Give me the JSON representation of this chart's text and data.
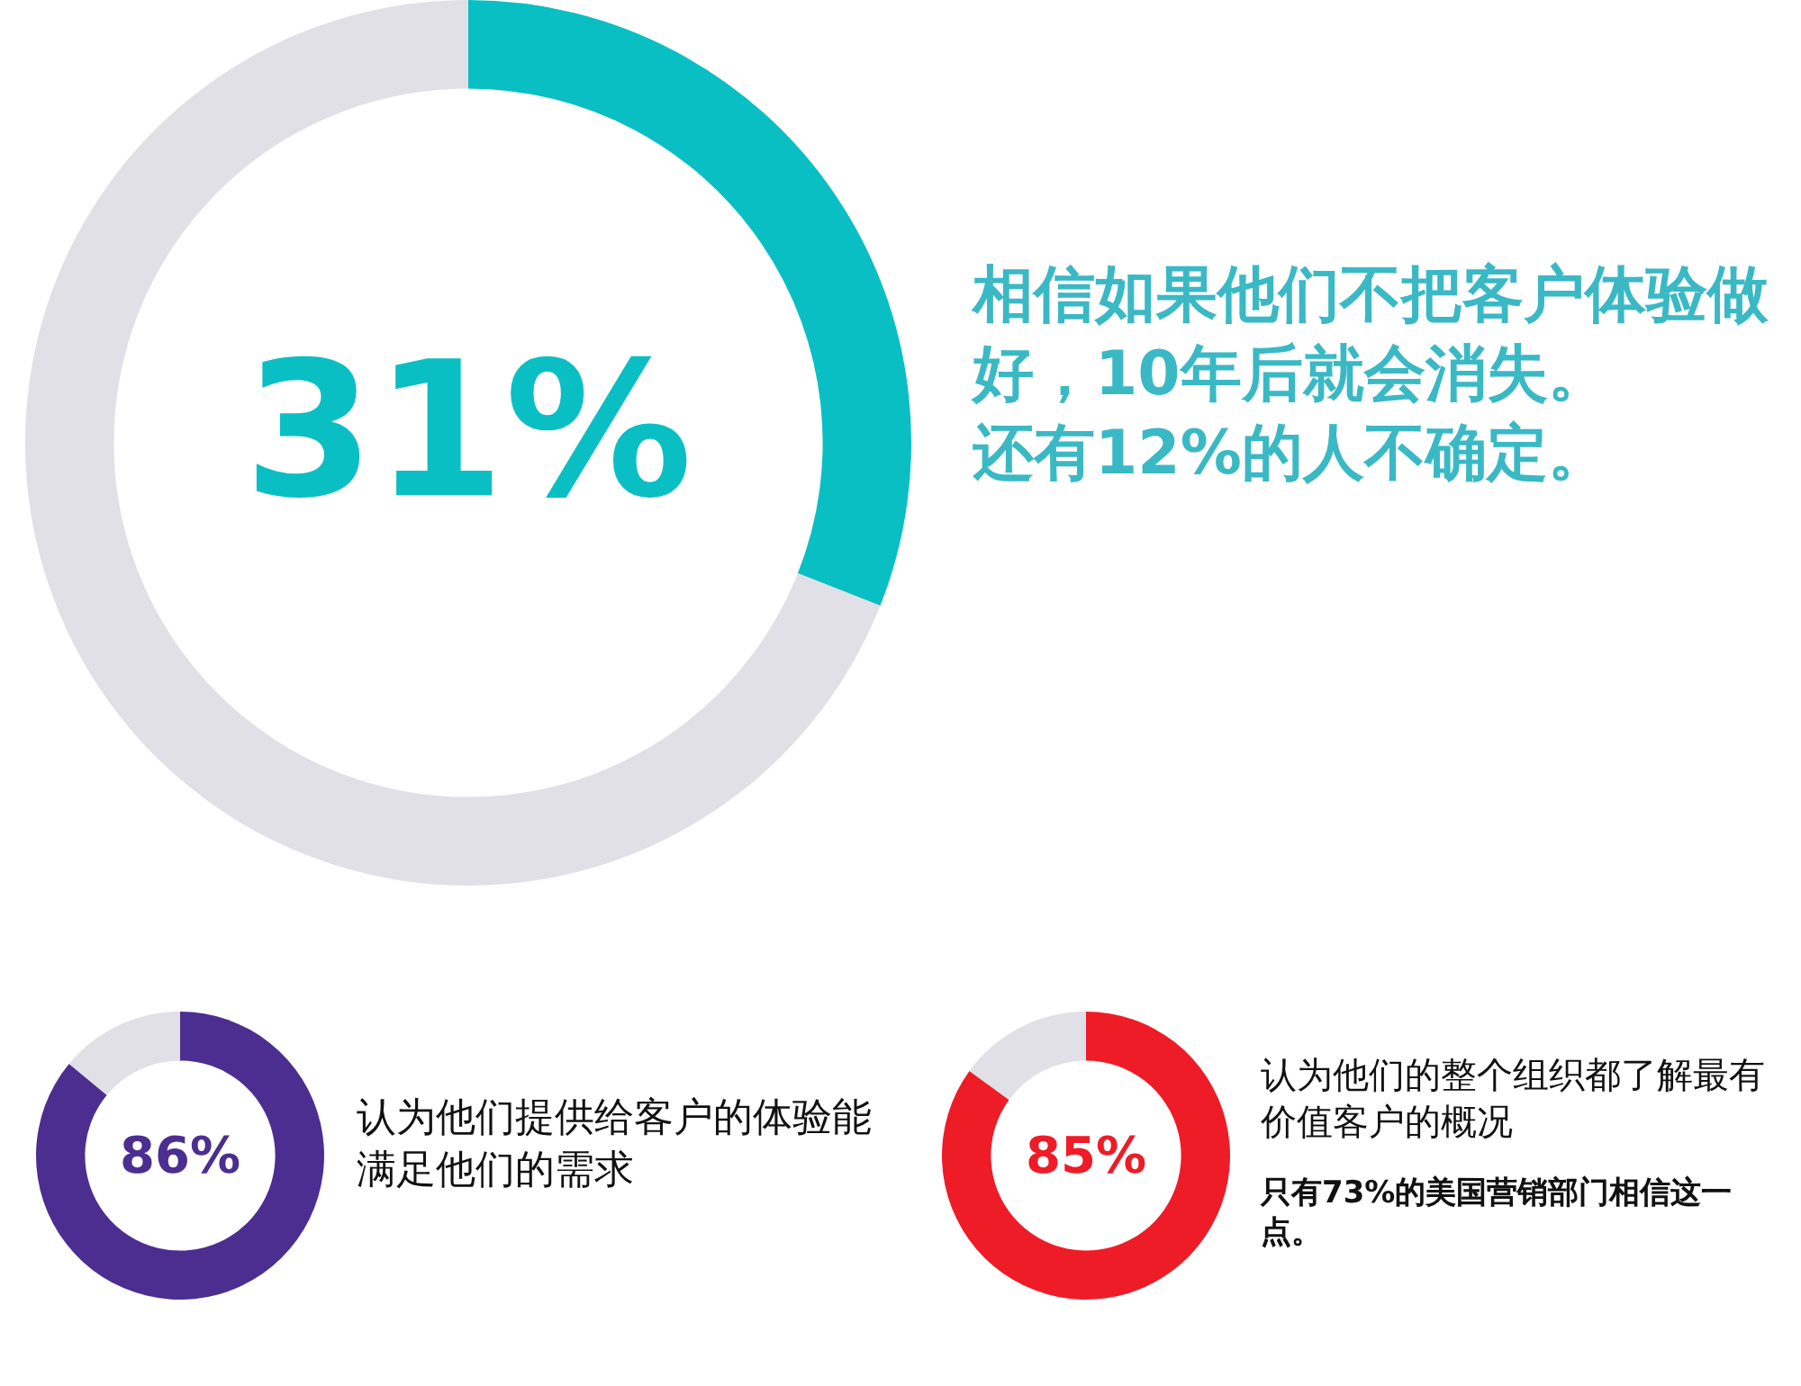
{
  "chart_data": [
    {
      "type": "donut",
      "categories": [
        null,
        null
      ],
      "values": [
        31,
        69
      ],
      "colors": [
        "#0abfc3",
        "#e1e0e6"
      ],
      "value_labels": [
        "31%",
        null
      ],
      "annotations": [
        "相信如果他们不把客户体验做好，10年后就会消失。",
        "还有12%的人不确定。"
      ]
    },
    {
      "type": "donut",
      "categories": [
        null,
        null
      ],
      "values": [
        86,
        14
      ],
      "colors": [
        "#4b2e90",
        "#e1e0e6"
      ],
      "value_labels": [
        "86%",
        null
      ],
      "annotations": [
        "认为他们提供给客户的体验能满足他们的需求"
      ]
    },
    {
      "type": "donut",
      "categories": [
        null,
        null
      ],
      "values": [
        85,
        15
      ],
      "colors": [
        "#ee1c27",
        "#e1e0e6"
      ],
      "value_labels": [
        "85%",
        null
      ],
      "annotations": [
        "认为他们的整个组织都了解最有价值客户的概况",
        "只有73%的美国营销部门相信这一点。"
      ]
    }
  ]
}
